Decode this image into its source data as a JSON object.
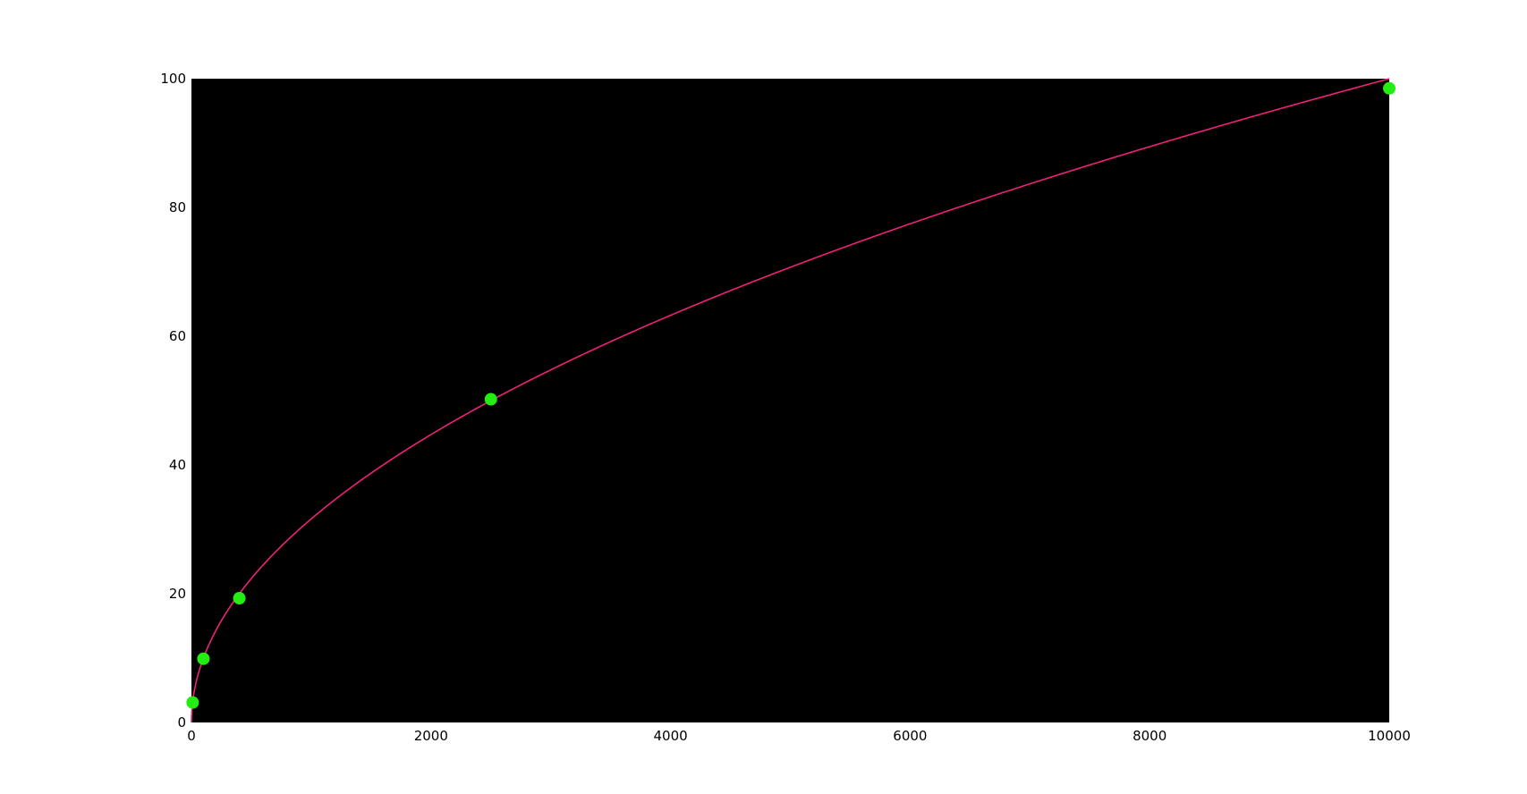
{
  "chart_data": {
    "type": "scatter",
    "title": "",
    "xlabel": "",
    "ylabel": "",
    "xlim": [
      0,
      10000
    ],
    "ylim": [
      0,
      100
    ],
    "x_ticks": [
      0,
      2000,
      4000,
      6000,
      8000,
      10000
    ],
    "y_ticks": [
      0,
      20,
      40,
      60,
      80,
      100
    ],
    "x_tick_labels": [
      "0",
      "2000",
      "4000",
      "6000",
      "8000",
      "10000"
    ],
    "y_tick_labels": [
      "0",
      "20",
      "40",
      "60",
      "80",
      "100"
    ],
    "grid": false,
    "legend": "none",
    "series": [
      {
        "kind": "points",
        "color": "#22ee11",
        "x": [
          10,
          100,
          400,
          2500,
          10000
        ],
        "y": [
          3.1,
          9.9,
          19.3,
          50.2,
          98.5
        ]
      },
      {
        "kind": "curve",
        "color": "#ee2277",
        "function": "y = sqrt(x)",
        "x": [
          0,
          10,
          50,
          100,
          200,
          400,
          700,
          1000,
          1500,
          2000,
          2500,
          3000,
          4000,
          5000,
          6000,
          7000,
          8000,
          9000,
          10000
        ],
        "y": [
          0,
          3.16,
          7.07,
          10,
          14.14,
          20,
          26.46,
          31.62,
          38.73,
          44.72,
          50,
          54.77,
          63.25,
          70.71,
          77.46,
          83.67,
          89.44,
          94.87,
          100
        ]
      }
    ],
    "colors": {
      "plot_background": "#000000",
      "page_background": "#ffffff"
    }
  }
}
